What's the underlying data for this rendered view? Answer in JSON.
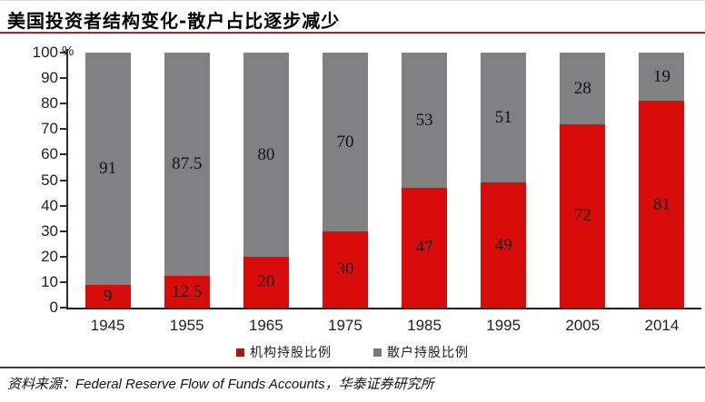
{
  "page": {
    "title": "美国投资者结构变化-散户占比逐步减少",
    "source_prefix": "资料来源：",
    "source_en": "Federal Reserve Flow of Funds Accounts",
    "source_sep": "，",
    "source_cn": "华泰证券研究所"
  },
  "colors": {
    "bar_red": "#d90c0c",
    "bar_gray": "#818184",
    "legend_red": "#a51719",
    "legend_gray": "#77777b",
    "title_underline": "#b32025",
    "axis": "#2e2e2e",
    "footer_line": "#3d3d3d",
    "label_text": "#141414"
  },
  "chart_data": {
    "type": "bar",
    "stacked": true,
    "categories": [
      "1945",
      "1955",
      "1965",
      "1975",
      "1985",
      "1995",
      "2005",
      "2014"
    ],
    "series": [
      {
        "name": "机构持股比例",
        "color_key": "bar_red",
        "values": [
          9,
          12.5,
          20,
          30,
          47,
          49,
          72,
          81
        ]
      },
      {
        "name": "散户持股比例",
        "color_key": "bar_gray",
        "values": [
          91,
          87.5,
          80,
          70,
          53,
          51,
          28,
          19
        ]
      }
    ],
    "ylabel": "%",
    "ylim": [
      0,
      100
    ],
    "ytick_step": 10,
    "grid": false,
    "legend_position": "bottom",
    "value_labels_shown": true
  }
}
